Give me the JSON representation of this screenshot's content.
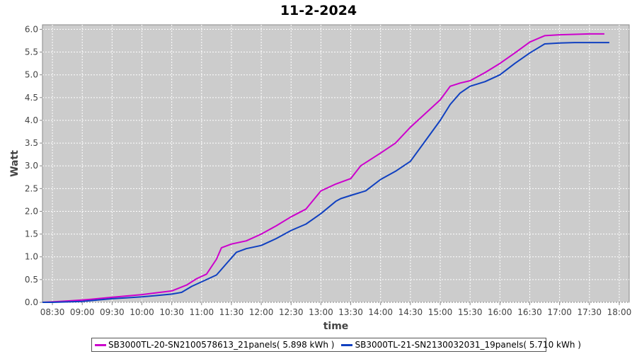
{
  "chart_data": {
    "type": "line",
    "title": "11-2-2024",
    "xlabel": "time",
    "ylabel": "Watt",
    "x_ticks": [
      "08:30",
      "09:00",
      "09:30",
      "10:00",
      "10:30",
      "11:00",
      "11:30",
      "12:00",
      "12:30",
      "13:00",
      "13:30",
      "14:00",
      "14:30",
      "15:00",
      "15:30",
      "16:00",
      "16:30",
      "17:00",
      "17:30",
      "18:00"
    ],
    "y_ticks": [
      "0.0",
      "0.5",
      "1.0",
      "1.5",
      "2.0",
      "2.5",
      "3.0",
      "3.5",
      "4.0",
      "4.5",
      "5.0",
      "5.5",
      "6.0"
    ],
    "xlim": [
      "08:20",
      "18:10"
    ],
    "ylim": [
      0,
      6.1
    ],
    "grid": true,
    "legend_position": "bottom",
    "series": [
      {
        "name": "SB3000TL-20-SN2100578613_21panels( 5.898 kWh )",
        "color": "#cc00cc",
        "points": [
          [
            "08:20",
            0.0
          ],
          [
            "08:30",
            0.01
          ],
          [
            "08:45",
            0.03
          ],
          [
            "09:00",
            0.05
          ],
          [
            "09:15",
            0.08
          ],
          [
            "09:30",
            0.11
          ],
          [
            "09:45",
            0.14
          ],
          [
            "10:00",
            0.17
          ],
          [
            "10:15",
            0.21
          ],
          [
            "10:30",
            0.25
          ],
          [
            "10:45",
            0.38
          ],
          [
            "10:55",
            0.52
          ],
          [
            "11:05",
            0.62
          ],
          [
            "11:15",
            0.95
          ],
          [
            "11:20",
            1.2
          ],
          [
            "11:30",
            1.28
          ],
          [
            "11:45",
            1.35
          ],
          [
            "12:00",
            1.5
          ],
          [
            "12:15",
            1.68
          ],
          [
            "12:30",
            1.88
          ],
          [
            "12:45",
            2.05
          ],
          [
            "13:00",
            2.45
          ],
          [
            "13:15",
            2.6
          ],
          [
            "13:30",
            2.72
          ],
          [
            "13:40",
            3.0
          ],
          [
            "14:00",
            3.28
          ],
          [
            "14:15",
            3.5
          ],
          [
            "14:30",
            3.85
          ],
          [
            "14:45",
            4.15
          ],
          [
            "15:00",
            4.45
          ],
          [
            "15:10",
            4.75
          ],
          [
            "15:20",
            4.82
          ],
          [
            "15:30",
            4.87
          ],
          [
            "15:45",
            5.05
          ],
          [
            "16:00",
            5.25
          ],
          [
            "16:15",
            5.48
          ],
          [
            "16:30",
            5.72
          ],
          [
            "16:45",
            5.86
          ],
          [
            "17:00",
            5.88
          ],
          [
            "17:15",
            5.89
          ],
          [
            "17:30",
            5.9
          ],
          [
            "17:45",
            5.9
          ]
        ]
      },
      {
        "name": "SB3000TL-21-SN2130032031_19panels( 5.710 kWh )",
        "color": "#1040c0",
        "points": [
          [
            "08:20",
            0.0
          ],
          [
            "08:30",
            0.0
          ],
          [
            "08:45",
            0.01
          ],
          [
            "09:00",
            0.02
          ],
          [
            "09:15",
            0.05
          ],
          [
            "09:30",
            0.08
          ],
          [
            "09:45",
            0.1
          ],
          [
            "10:00",
            0.12
          ],
          [
            "10:15",
            0.15
          ],
          [
            "10:30",
            0.18
          ],
          [
            "10:40",
            0.22
          ],
          [
            "10:50",
            0.35
          ],
          [
            "11:05",
            0.5
          ],
          [
            "11:15",
            0.6
          ],
          [
            "11:25",
            0.85
          ],
          [
            "11:35",
            1.1
          ],
          [
            "11:45",
            1.18
          ],
          [
            "12:00",
            1.25
          ],
          [
            "12:15",
            1.4
          ],
          [
            "12:30",
            1.58
          ],
          [
            "12:45",
            1.72
          ],
          [
            "13:00",
            1.95
          ],
          [
            "13:15",
            2.22
          ],
          [
            "13:20",
            2.28
          ],
          [
            "13:30",
            2.35
          ],
          [
            "13:45",
            2.45
          ],
          [
            "14:00",
            2.7
          ],
          [
            "14:15",
            2.88
          ],
          [
            "14:30",
            3.1
          ],
          [
            "14:45",
            3.55
          ],
          [
            "15:00",
            4.0
          ],
          [
            "15:10",
            4.35
          ],
          [
            "15:20",
            4.6
          ],
          [
            "15:30",
            4.75
          ],
          [
            "15:45",
            4.85
          ],
          [
            "16:00",
            5.0
          ],
          [
            "16:15",
            5.25
          ],
          [
            "16:30",
            5.48
          ],
          [
            "16:45",
            5.68
          ],
          [
            "17:00",
            5.7
          ],
          [
            "17:15",
            5.71
          ],
          [
            "17:30",
            5.71
          ],
          [
            "17:50",
            5.71
          ]
        ]
      }
    ]
  }
}
